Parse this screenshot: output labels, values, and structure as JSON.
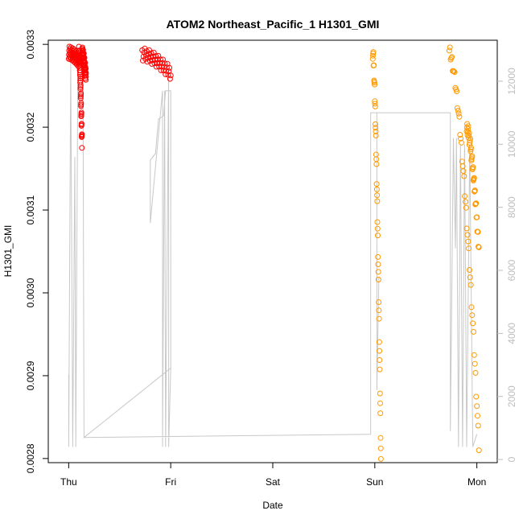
{
  "chart_data": {
    "type": "scatter",
    "title": "ATOM2 Northeast_Pacific_1 H1301_GMI",
    "xlabel": "Date",
    "ylabel": "H1301_GMI",
    "x_ticks": [
      {
        "label": "Thu",
        "value": 0
      },
      {
        "label": "Fri",
        "value": 1
      },
      {
        "label": "Sat",
        "value": 2
      },
      {
        "label": "Sun",
        "value": 3
      },
      {
        "label": "Mon",
        "value": 4
      }
    ],
    "xlim": [
      -0.2,
      4.2
    ],
    "y_ticks": [
      "0.0028",
      "0.0029",
      "0.0030",
      "0.0031",
      "0.0032",
      "0.0033"
    ],
    "ylim": [
      0.002795,
      0.003305
    ],
    "y2_ticks": [
      "0",
      "2000",
      "4000",
      "6000",
      "8000",
      "10000",
      "12000"
    ],
    "y2lim": [
      -100,
      13300
    ],
    "grid": false,
    "colors": {
      "series_red": "#ff0000",
      "series_orange": "#ff9900",
      "secondary_line": "#c8c8c8",
      "axis": "#000000",
      "secondary_axis": "#bdbdbd"
    },
    "series": [
      {
        "color": "#ff0000",
        "marker": "open-circle",
        "segments": [
          {
            "x0": 0.0,
            "x1": 0.1,
            "top": 0.00329,
            "bottom": 0.00328
          },
          {
            "x0": 0.1,
            "x1": 0.13,
            "top": 0.00329,
            "bottom": 0.00318
          },
          {
            "x0": 0.13,
            "x1": 0.17,
            "top": 0.00329,
            "bottom": 0.00326
          },
          {
            "x0": 0.72,
            "x1": 1.0,
            "top": 0.003288,
            "bottom": 0.003265
          }
        ]
      },
      {
        "color": "#ff9900",
        "marker": "open-circle",
        "segments": [
          {
            "x0": 2.98,
            "x1": 3.06,
            "top": 0.00329,
            "bottom": 0.002797
          },
          {
            "x0": 3.73,
            "x1": 4.02,
            "top": 0.00329,
            "bottom": 0.002815
          },
          {
            "x0": 3.9,
            "x1": 4.02,
            "top": 0.0032,
            "bottom": 0.00305
          }
        ]
      }
    ],
    "secondary_series": {
      "color": "#c8c8c8",
      "points": [
        [
          0.0,
          2700
        ],
        [
          0.0,
          400
        ],
        [
          0.02,
          12600
        ],
        [
          0.04,
          400
        ],
        [
          0.06,
          9600
        ],
        [
          0.07,
          400
        ],
        [
          0.09,
          12600
        ],
        [
          0.14,
          12700
        ],
        [
          0.15,
          700
        ],
        [
          1.0,
          2900
        ],
        [
          1.0,
          11700
        ],
        [
          0.95,
          11700
        ],
        [
          0.93,
          10900
        ],
        [
          0.88,
          10800
        ],
        [
          0.85,
          9700
        ],
        [
          0.8,
          9500
        ],
        [
          0.8,
          7500
        ],
        [
          0.92,
          11700
        ],
        [
          0.92,
          400
        ],
        [
          0.94,
          11700
        ],
        [
          0.95,
          400
        ],
        [
          0.98,
          12400
        ],
        [
          0.98,
          400
        ],
        [
          1.0,
          2900
        ],
        [
          0.15,
          700
        ],
        [
          2.96,
          800
        ],
        [
          2.96,
          11000
        ],
        [
          3.02,
          11000
        ],
        [
          3.02,
          2200
        ],
        [
          3.04,
          5800
        ],
        [
          3.02,
          2200
        ],
        [
          3.02,
          11000
        ],
        [
          3.74,
          11000
        ],
        [
          3.74,
          900
        ],
        [
          3.77,
          10200
        ],
        [
          3.79,
          6700
        ],
        [
          3.8,
          10200
        ],
        [
          3.82,
          400
        ],
        [
          3.84,
          10000
        ],
        [
          3.86,
          400
        ],
        [
          3.88,
          10000
        ],
        [
          3.9,
          400
        ],
        [
          3.93,
          10000
        ],
        [
          3.96,
          400
        ],
        [
          4.0,
          800
        ]
      ]
    }
  }
}
